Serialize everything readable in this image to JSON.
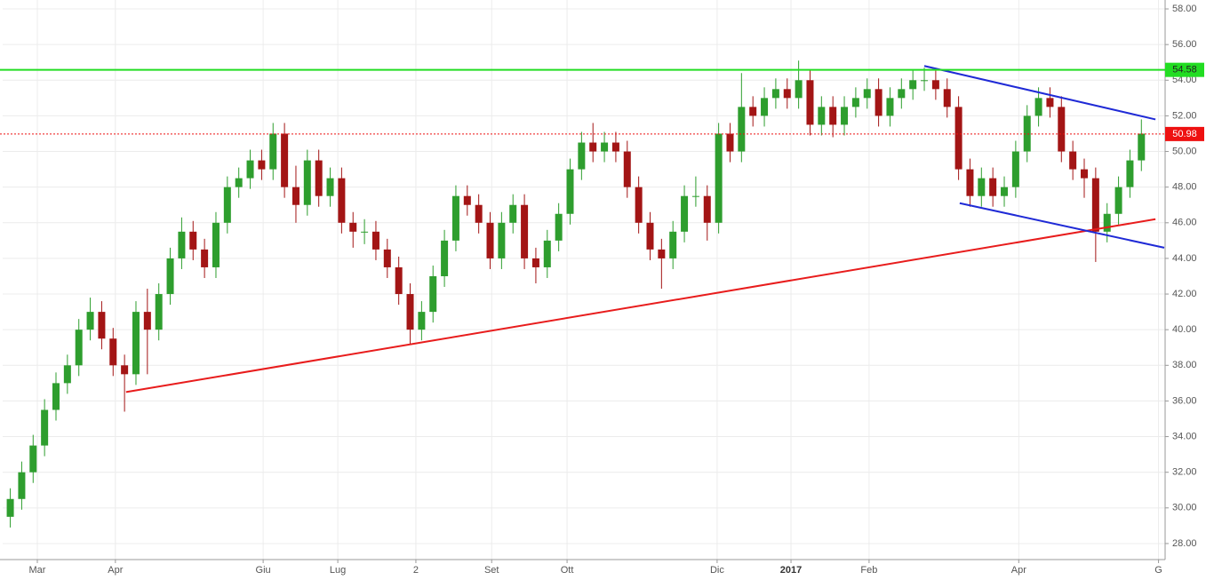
{
  "chart_data": {
    "type": "candlestick",
    "x": [
      2,
      5,
      8,
      11,
      14,
      17,
      20,
      23,
      26,
      29,
      32,
      35,
      38,
      41,
      44,
      47,
      50,
      53,
      56,
      59,
      62,
      65,
      68,
      71,
      74,
      77,
      80,
      83,
      86,
      89,
      92,
      95,
      98,
      101,
      104,
      107,
      110,
      113,
      116,
      119,
      122,
      125,
      128,
      131,
      134,
      137,
      140,
      143,
      146,
      149,
      152,
      155,
      158,
      161,
      164,
      167,
      170,
      173,
      176,
      179,
      182,
      185,
      188,
      191,
      194,
      197,
      200,
      203,
      206,
      209,
      212,
      215,
      218,
      221,
      224,
      227,
      230,
      233,
      236,
      239,
      242,
      245,
      248,
      251,
      254,
      257,
      260,
      263,
      266,
      269,
      272,
      275,
      278,
      281,
      284,
      287,
      290,
      293,
      296,
      299
    ],
    "open": [
      29.5,
      30.5,
      32,
      33.5,
      35.5,
      37,
      38,
      40,
      41,
      39.5,
      38,
      37.5,
      41,
      40,
      42,
      44,
      45.5,
      44.5,
      43.5,
      46,
      48,
      48.5,
      49.5,
      49,
      51,
      48,
      47,
      49.5,
      47.5,
      48.5,
      46,
      45.5,
      45.5,
      44.5,
      43.5,
      42,
      40,
      41,
      43,
      45,
      47.5,
      47,
      46,
      44,
      46,
      47,
      44,
      43.5,
      45,
      46.5,
      49,
      50.5,
      50,
      50.5,
      50,
      48,
      46,
      44.5,
      44,
      45.5,
      47.5,
      47.5,
      46,
      51,
      50,
      52.5,
      52,
      53,
      53.5,
      53,
      54,
      51.5,
      52.5,
      51.5,
      52.5,
      53,
      53.5,
      52,
      53,
      53.5,
      54,
      54,
      53.5,
      52.5,
      49,
      47.5,
      48.5,
      47.5,
      48,
      50,
      52,
      53,
      52.5,
      50,
      49,
      48.5,
      45.5,
      46.5,
      48,
      49.5
    ],
    "high": [
      31.1,
      32.6,
      34.1,
      36.1,
      37.6,
      38.6,
      40.6,
      41.8,
      41.6,
      40.1,
      38.6,
      41.6,
      42.3,
      42.6,
      44.6,
      46.3,
      46.1,
      45.1,
      46.6,
      48.6,
      49.1,
      50.1,
      50.1,
      51.6,
      51.6,
      49.2,
      50.1,
      50.1,
      49.1,
      49.1,
      46.6,
      46.2,
      46.1,
      45.1,
      44.1,
      42.6,
      41.6,
      43.6,
      45.6,
      48.1,
      48.1,
      47.6,
      46.6,
      46.6,
      47.6,
      47.6,
      44.6,
      45.6,
      47.1,
      49.6,
      51.1,
      51.6,
      51.1,
      51.1,
      50.6,
      48.6,
      46.6,
      45.1,
      46.1,
      48.1,
      48.6,
      48.1,
      51.6,
      51.6,
      54.4,
      53.1,
      53.6,
      54.1,
      54.1,
      55.1,
      54.6,
      53.1,
      53.1,
      53.1,
      53.6,
      54.1,
      54.1,
      53.6,
      54.1,
      54.6,
      54.7,
      54.6,
      54.1,
      53.1,
      49.6,
      49.1,
      49.1,
      48.6,
      50.6,
      52.6,
      53.6,
      53.6,
      53.1,
      50.6,
      49.6,
      49.1,
      47.1,
      48.6,
      50.1,
      51.8
    ],
    "low": [
      28.9,
      29.9,
      31.4,
      32.9,
      34.9,
      36.4,
      37.4,
      39.4,
      38.9,
      37.4,
      35.4,
      36.9,
      37.5,
      39.4,
      41.4,
      43.4,
      43.9,
      42.9,
      42.9,
      45.4,
      47.4,
      47.9,
      48.4,
      48.4,
      47.4,
      46,
      46.4,
      46.9,
      46.9,
      45.4,
      44.6,
      44.8,
      43.9,
      42.9,
      41.4,
      39.2,
      39.4,
      40.4,
      42.4,
      44.4,
      46.4,
      45.4,
      43.4,
      43.4,
      45.4,
      43.4,
      42.6,
      42.9,
      44.4,
      45.9,
      48.4,
      49.4,
      49.4,
      49.4,
      47.4,
      45.4,
      43.9,
      42.3,
      43.4,
      44.9,
      46.9,
      45,
      45.4,
      49.4,
      49.4,
      51.4,
      51.4,
      52.4,
      52.4,
      52.4,
      50.9,
      50.9,
      50.8,
      50.9,
      51.9,
      52.4,
      51.4,
      51.4,
      52.4,
      52.9,
      53.4,
      52.9,
      51.9,
      48.4,
      46.9,
      46.9,
      46.9,
      46.9,
      47.4,
      49.4,
      51.4,
      51.9,
      49.4,
      48.4,
      47.4,
      43.8,
      44.9,
      45.9,
      47.4,
      48.9
    ],
    "close": [
      30.5,
      32,
      33.5,
      35.5,
      37,
      38,
      40,
      41,
      39.5,
      38,
      37.5,
      41,
      40,
      42,
      44,
      45.5,
      44.5,
      43.5,
      46,
      48,
      48.5,
      49.5,
      49,
      51,
      48,
      47,
      49.5,
      47.5,
      48.5,
      46,
      45.5,
      45.5,
      44.5,
      43.5,
      42,
      40,
      41,
      43,
      45,
      47.5,
      47,
      46,
      44,
      46,
      47,
      44,
      43.5,
      45,
      46.5,
      49,
      50.5,
      50,
      50.5,
      50,
      48,
      46,
      44.5,
      44,
      45.5,
      47.5,
      47.5,
      46,
      51,
      50,
      52.5,
      52,
      53,
      53.5,
      53,
      54,
      51.5,
      52.5,
      51.5,
      52.5,
      53,
      53.5,
      52,
      53,
      53.5,
      54,
      54,
      53.5,
      52.5,
      49,
      47.5,
      48.5,
      47.5,
      48,
      50,
      52,
      53,
      52.5,
      50,
      49,
      48.5,
      45.5,
      46.5,
      48,
      49.5,
      51
    ],
    "up_color": "#2e9e2e",
    "down_color": "#a31515",
    "xlim": [
      0,
      305
    ],
    "xticks": [
      {
        "value": 9.1,
        "label": "Mar"
      },
      {
        "value": 29.6,
        "label": "Apr"
      },
      {
        "value": 68.4,
        "label": "Giu"
      },
      {
        "value": 88,
        "label": "Lug"
      },
      {
        "value": 108.5,
        "label": "2"
      },
      {
        "value": 128.4,
        "label": "Set"
      },
      {
        "value": 148.2,
        "label": "Ott"
      },
      {
        "value": 187.6,
        "label": "Dic"
      },
      {
        "value": 207,
        "label": "2017",
        "bold": true
      },
      {
        "value": 227.5,
        "label": "Feb"
      },
      {
        "value": 266.8,
        "label": "Apr"
      },
      {
        "value": 303.5,
        "label": "G"
      }
    ],
    "ylim": [
      27.1,
      58.5
    ],
    "yticks": [
      {
        "value": 28,
        "label": "28.00"
      },
      {
        "value": 30,
        "label": "30.00"
      },
      {
        "value": 32,
        "label": "32.00"
      },
      {
        "value": 34,
        "label": "34.00"
      },
      {
        "value": 36,
        "label": "36.00"
      },
      {
        "value": 38,
        "label": "38.00"
      },
      {
        "value": 40,
        "label": "40.00"
      },
      {
        "value": 42,
        "label": "42.00"
      },
      {
        "value": 44,
        "label": "44.00"
      },
      {
        "value": 46,
        "label": "46.00"
      },
      {
        "value": 48,
        "label": "48.00"
      },
      {
        "value": 50,
        "label": "50.00"
      },
      {
        "value": 52,
        "label": "52.00"
      },
      {
        "value": 54,
        "label": "54.00"
      },
      {
        "value": 56,
        "label": "56.00"
      },
      {
        "value": 58,
        "label": "58.00"
      }
    ],
    "grid": true,
    "levels": [
      {
        "value": 54.58,
        "label": "54.58",
        "color": "#22dd22",
        "style": "solid"
      },
      {
        "value": 50.98,
        "label": "50.98",
        "color": "#ee1111",
        "style": "dotted"
      }
    ],
    "trendlines": [
      {
        "x": [
          32.4,
          302.7
        ],
        "y": [
          36.5,
          46.2
        ],
        "color": "#e81c1c"
      },
      {
        "x": [
          242,
          302.7
        ],
        "y": [
          54.8,
          51.8
        ],
        "color": "#1f2ad6"
      },
      {
        "x": [
          251.3,
          305
        ],
        "y": [
          47.1,
          44.6
        ],
        "color": "#1f2ad6"
      }
    ]
  }
}
